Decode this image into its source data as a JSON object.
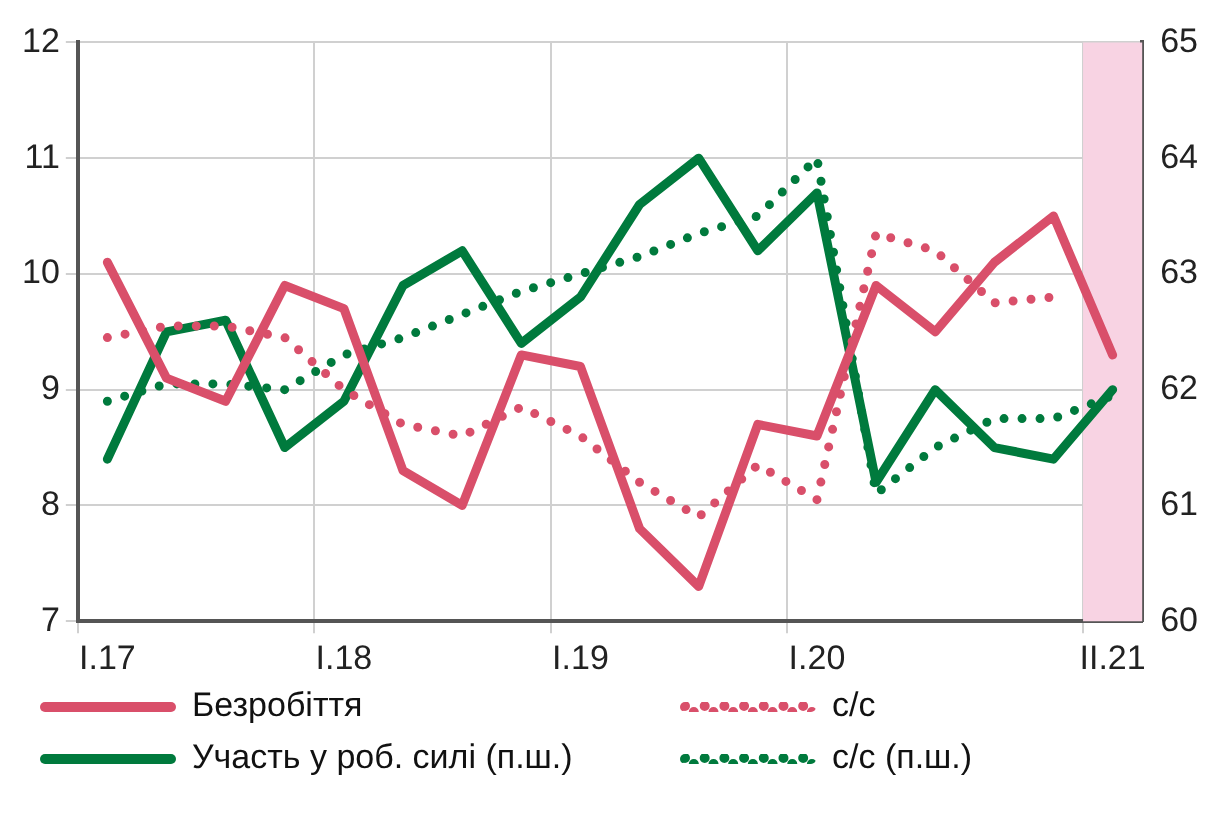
{
  "chart_data": {
    "type": "line",
    "categories": [
      "I.17",
      null,
      null,
      null,
      "I.18",
      null,
      null,
      null,
      "I.19",
      null,
      null,
      null,
      "I.20",
      null,
      null,
      null,
      null,
      "II.21"
    ],
    "series": [
      {
        "name": "Безробіття",
        "color": "#d94f6a",
        "line_style": "solid",
        "values": [
          10.1,
          9.1,
          8.9,
          9.9,
          9.7,
          8.3,
          8.0,
          9.3,
          9.2,
          7.8,
          7.3,
          8.7,
          8.6,
          9.9,
          9.5,
          10.1,
          10.5,
          9.3
        ]
      },
      {
        "name": "с/с",
        "color": "#d94f6a",
        "line_style": "dotted",
        "values": [
          9.45,
          9.55,
          9.55,
          9.45,
          9.0,
          8.7,
          8.6,
          8.85,
          8.6,
          8.2,
          7.9,
          8.35,
          8.05,
          10.35,
          10.2,
          9.75,
          9.8,
          null
        ]
      },
      {
        "name": "Участь у роб. силі (п.ш.)",
        "color": "#007a3d",
        "line_style": "solid",
        "axis": "y2",
        "values": [
          61.4,
          62.5,
          62.6,
          61.5,
          61.9,
          62.9,
          63.2,
          62.4,
          62.8,
          63.6,
          64.0,
          63.2,
          63.7,
          61.2,
          62.0,
          61.5,
          61.4,
          62.0
        ]
      },
      {
        "name": "с/с (п.ш.)",
        "color": "#007a3d",
        "line_style": "dotted",
        "axis": "y2",
        "values": [
          61.9,
          62.05,
          62.05,
          62.0,
          62.3,
          62.45,
          62.65,
          62.85,
          63.0,
          63.15,
          63.35,
          63.5,
          64.0,
          61.1,
          61.5,
          61.75,
          61.75,
          61.95
        ]
      }
    ],
    "ylim": [
      7,
      12
    ],
    "yticks": [
      7,
      8,
      9,
      10,
      11,
      12
    ],
    "y2lim": [
      60,
      65
    ],
    "y2ticks": [
      60,
      61,
      62,
      63,
      64,
      65
    ],
    "bands": [
      {
        "axis": "x",
        "from": "II.21",
        "to": "II.21",
        "color": "#f8d3e3"
      }
    ],
    "grid": true,
    "legend": "bottom",
    "marker": "none"
  }
}
